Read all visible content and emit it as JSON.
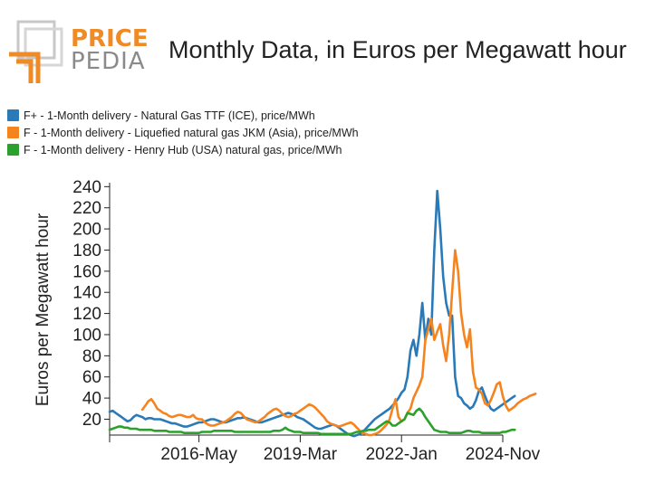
{
  "header": {
    "logo_top": "PRICE",
    "logo_bottom": "PEDIA",
    "title": "Monthly Data, in Euros per Megawatt hour"
  },
  "colors": {
    "ttf": "#2a7ab8",
    "jkm": "#f5841f",
    "henry": "#2ca02c",
    "logo_orange": "#f08a24",
    "logo_gray": "#8a8a8a"
  },
  "chart_data": {
    "type": "line",
    "ylabel": "Euros per Megawatt hour",
    "ylim": [
      5,
      242
    ],
    "yticks": [
      20,
      40,
      60,
      80,
      100,
      120,
      140,
      160,
      180,
      200,
      220,
      240
    ],
    "x_unit": "month",
    "x_range": [
      "2013-11",
      "2024-11"
    ],
    "xticks": [
      "2016-May",
      "2019-Mar",
      "2022-Jan",
      "2024-Nov"
    ],
    "legend_position": "top-left",
    "series": [
      {
        "name": "F+ - 1-Month delivery - Natural Gas TTF (ICE), price/MWh",
        "key": "ttf",
        "start": "2013-11",
        "values": [
          27,
          28,
          26,
          24,
          22,
          20,
          18,
          19,
          22,
          24,
          23,
          22,
          20,
          21,
          21,
          20,
          20,
          20,
          19,
          18,
          17,
          16,
          16,
          15,
          14,
          13,
          13,
          14,
          15,
          16,
          17,
          17,
          18,
          19,
          20,
          20,
          19,
          18,
          17,
          17,
          18,
          19,
          20,
          21,
          21,
          22,
          21,
          20,
          19,
          18,
          17,
          17,
          18,
          19,
          20,
          21,
          22,
          23,
          24,
          25,
          26,
          25,
          24,
          22,
          21,
          20,
          18,
          16,
          14,
          12,
          11,
          11,
          12,
          13,
          14,
          15,
          14,
          12,
          10,
          8,
          6,
          5,
          4,
          5,
          6,
          8,
          11,
          14,
          17,
          20,
          22,
          24,
          26,
          28,
          30,
          33,
          36,
          40,
          45,
          48,
          60,
          85,
          95,
          80,
          100,
          130,
          95,
          115,
          100,
          180,
          236,
          200,
          155,
          130,
          118,
          118,
          60,
          42,
          40,
          35,
          33,
          30,
          32,
          38,
          47,
          50,
          42,
          35,
          30,
          28,
          30,
          32,
          34,
          36,
          38,
          40,
          42
        ]
      },
      {
        "name": "F - 1-Month delivery - Liquefied natural gas JKM (Asia), price/MWh",
        "key": "jkm",
        "start": "2014-10",
        "values": [
          29,
          33,
          37,
          39,
          35,
          30,
          28,
          26,
          25,
          23,
          22,
          23,
          24,
          24,
          23,
          22,
          22,
          24,
          21,
          20,
          20,
          17,
          15,
          14,
          14,
          15,
          16,
          17,
          18,
          20,
          22,
          25,
          27,
          26,
          23,
          20,
          19,
          18,
          17,
          18,
          20,
          22,
          25,
          27,
          29,
          30,
          28,
          25,
          23,
          22,
          23,
          25,
          26,
          28,
          30,
          32,
          34,
          33,
          31,
          28,
          25,
          22,
          18,
          16,
          15,
          14,
          13,
          14,
          15,
          16,
          17,
          15,
          12,
          9,
          7,
          6,
          5,
          5,
          6,
          7,
          9,
          12,
          15,
          20,
          30,
          39,
          22,
          18,
          20,
          26,
          30,
          40,
          46,
          52,
          60,
          95,
          105,
          115,
          95,
          103,
          110,
          90,
          75,
          100,
          140,
          180,
          160,
          120,
          100,
          88,
          105,
          65,
          50,
          48,
          44,
          35,
          33,
          38,
          45,
          53,
          55,
          42,
          33,
          28,
          30,
          32,
          35,
          37,
          39,
          40,
          42,
          43,
          44
        ]
      },
      {
        "name": "F - 1-Month delivery - Henry Hub (USA) natural gas, price/MWh",
        "key": "henry",
        "start": "2013-11",
        "values": [
          10,
          11,
          12,
          13,
          13,
          12,
          12,
          11,
          11,
          11,
          10,
          10,
          10,
          10,
          10,
          9,
          9,
          9,
          9,
          9,
          8,
          8,
          8,
          8,
          8,
          7,
          7,
          7,
          7,
          7,
          7,
          8,
          8,
          8,
          8,
          9,
          9,
          9,
          9,
          9,
          9,
          9,
          8,
          8,
          8,
          8,
          8,
          8,
          8,
          8,
          8,
          8,
          8,
          8,
          8,
          9,
          9,
          9,
          10,
          12,
          10,
          9,
          8,
          8,
          8,
          7,
          7,
          7,
          7,
          7,
          7,
          6,
          6,
          6,
          6,
          6,
          6,
          6,
          6,
          6,
          6,
          6,
          7,
          8,
          8,
          9,
          9,
          10,
          10,
          10,
          12,
          14,
          16,
          18,
          17,
          14,
          14,
          16,
          18,
          20,
          26,
          25,
          24,
          28,
          30,
          27,
          22,
          18,
          14,
          10,
          9,
          8,
          8,
          8,
          7,
          7,
          7,
          7,
          7,
          8,
          9,
          9,
          8,
          8,
          8,
          7,
          7,
          7,
          7,
          7,
          7,
          7,
          8,
          8,
          9,
          10,
          10
        ]
      }
    ]
  }
}
